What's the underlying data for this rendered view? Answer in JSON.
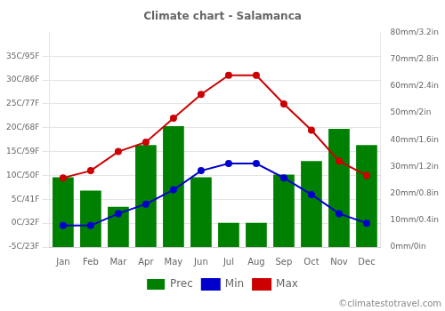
{
  "chart_data": {
    "type": "bar",
    "title": "Climate chart - Salamanca",
    "categories": [
      "Jan",
      "Feb",
      "Mar",
      "Apr",
      "May",
      "Jun",
      "Jul",
      "Aug",
      "Sep",
      "Oct",
      "Nov",
      "Dec"
    ],
    "series": [
      {
        "name": "Prec",
        "type": "bar",
        "axis": "y2",
        "color": "#008000",
        "values": [
          26,
          21,
          15,
          38,
          45,
          26,
          9,
          9,
          27,
          32,
          44,
          38
        ]
      },
      {
        "name": "Min",
        "type": "line",
        "marker": "circle",
        "color": "#0000cc",
        "values": [
          -0.5,
          -0.5,
          2,
          4,
          7,
          11,
          12.5,
          12.5,
          9.5,
          6,
          2,
          0
        ]
      },
      {
        "name": "Max",
        "type": "line",
        "marker": "circle",
        "color": "#cc0000",
        "values": [
          9.5,
          11,
          15,
          17,
          22,
          27,
          31,
          31,
          25,
          19.5,
          13,
          10
        ]
      }
    ],
    "ylim": [
      -5,
      40
    ],
    "yticks": [
      {
        "value": -5,
        "label": "-5C/23F"
      },
      {
        "value": 0,
        "label": "0C/32F"
      },
      {
        "value": 5,
        "label": "5C/41F"
      },
      {
        "value": 10,
        "label": "10C/50F"
      },
      {
        "value": 15,
        "label": "15C/59F"
      },
      {
        "value": 20,
        "label": "20C/68F"
      },
      {
        "value": 25,
        "label": "25C/77F"
      },
      {
        "value": 30,
        "label": "30C/86F"
      },
      {
        "value": 35,
        "label": "35C/95F"
      }
    ],
    "y2lim": [
      0,
      80
    ],
    "y2ticks": [
      {
        "value": 0,
        "label": "0mm/0in"
      },
      {
        "value": 10,
        "label": "10mm/0.4in"
      },
      {
        "value": 20,
        "label": "20mm/0.8in"
      },
      {
        "value": 30,
        "label": "30mm/1.2in"
      },
      {
        "value": 40,
        "label": "40mm/1.6in"
      },
      {
        "value": 50,
        "label": "50mm/2in"
      },
      {
        "value": 60,
        "label": "60mm/2.4in"
      },
      {
        "value": 70,
        "label": "70mm/2.8in"
      },
      {
        "value": 80,
        "label": "80mm/3.2in"
      }
    ],
    "grid": true,
    "legend": "bottom",
    "annotations": [
      "©climatestotravel.com"
    ]
  }
}
